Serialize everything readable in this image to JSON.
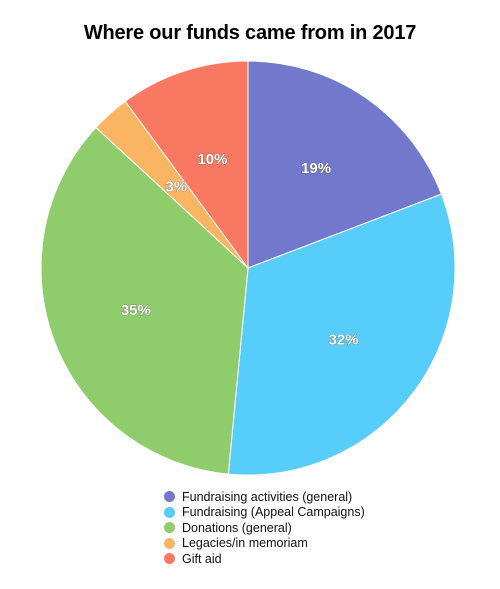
{
  "chart_data": {
    "type": "pie",
    "title": "Where our funds came from in 2017",
    "slices": [
      {
        "label": "Fundraising activities (general)",
        "value": 19,
        "display": "19%",
        "color": "#7279cc"
      },
      {
        "label": "Fundraising (Appeal Campaigns)",
        "value": 32,
        "display": "32%",
        "color": "#56cdfb"
      },
      {
        "label": "Donations (general)",
        "value": 35,
        "display": "35%",
        "color": "#8fcd6c"
      },
      {
        "label": "Legacies/in memoriam",
        "value": 3,
        "display": "3%",
        "color": "#fbb462"
      },
      {
        "label": "Gift aid",
        "value": 10,
        "display": "10%",
        "color": "#f97862"
      }
    ],
    "legend_placement": "bottom"
  }
}
